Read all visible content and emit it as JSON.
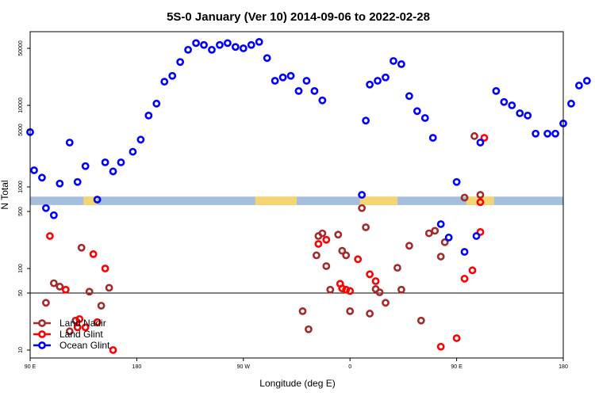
{
  "chart_data": {
    "type": "scatter",
    "title": "5S-0 January (Ver 10)   2014-09-06 to 2022-02-28",
    "xlabel": "Longitude (deg E)",
    "ylabel": "N Total",
    "y_scale": "log",
    "ylim": [
      8,
      80000
    ],
    "x_ticks": [
      "90 E",
      "180",
      "90 W",
      "0",
      "90 E",
      "180"
    ],
    "y_ticks": [
      "10",
      "50",
      "100",
      "500",
      "1000",
      "5000",
      "10000",
      "50000"
    ],
    "reference_line_y": 50,
    "land_band": {
      "y_range": [
        600,
        760
      ],
      "ocean_color": "#a4bedc",
      "land_color": "#f5d572"
    },
    "legend": {
      "position": "bottom-left"
    },
    "series": [
      {
        "name": "Land Nadir",
        "color": "#a52a2a",
        "x": [
          8,
          12,
          15,
          20,
          23,
          26,
          30,
          36,
          40,
          138,
          141,
          145,
          146,
          148,
          150,
          152,
          156,
          158,
          160,
          162,
          168,
          170,
          172,
          175,
          177,
          180,
          186,
          188,
          192,
          198,
          202,
          205,
          208,
          210,
          220,
          225,
          228
        ],
        "y": [
          38,
          66,
          60,
          17,
          23,
          180,
          52,
          35,
          58,
          30,
          18,
          145,
          250,
          270,
          107,
          55,
          260,
          165,
          145,
          30,
          550,
          320,
          28,
          56,
          51,
          38,
          102,
          55,
          190,
          23,
          270,
          290,
          140,
          210,
          740,
          4200,
          800
        ]
      },
      {
        "name": "Land Glint",
        "color": "#ff0000",
        "x": [
          10,
          18,
          24,
          25,
          28,
          32,
          34,
          38,
          42,
          146,
          150,
          157,
          158,
          160,
          162,
          166,
          172,
          175,
          208,
          216,
          220,
          224,
          228,
          228,
          230
        ],
        "y": [
          250,
          55,
          19,
          24,
          19,
          150,
          22,
          100,
          10,
          200,
          225,
          65,
          57,
          55,
          53,
          130,
          85,
          70,
          11,
          14,
          75,
          95,
          280,
          650,
          4000
        ]
      },
      {
        "name": "Ocean Glint",
        "color": "#0000ff",
        "x": [
          0,
          2,
          6,
          8,
          12,
          15,
          20,
          24,
          28,
          34,
          38,
          42,
          46,
          52,
          56,
          60,
          64,
          68,
          72,
          76,
          80,
          84,
          88,
          92,
          96,
          100,
          104,
          108,
          112,
          116,
          120,
          124,
          128,
          132,
          136,
          140,
          144,
          148,
          168,
          170,
          172,
          176,
          180,
          184,
          188,
          192,
          196,
          200,
          204,
          208,
          212,
          216,
          220,
          226,
          228,
          236,
          240,
          244,
          248,
          252,
          256,
          262,
          266,
          270,
          274,
          278,
          282
        ],
        "y": [
          4700,
          1600,
          1300,
          550,
          450,
          1100,
          3500,
          1150,
          1800,
          700,
          2000,
          1550,
          2000,
          2700,
          3800,
          7500,
          10500,
          19500,
          23000,
          34000,
          48000,
          58000,
          55000,
          48000,
          55000,
          58000,
          52000,
          50000,
          55000,
          60000,
          38000,
          20000,
          22000,
          23000,
          15000,
          20000,
          15000,
          11500,
          800,
          6500,
          18000,
          20000,
          22000,
          35000,
          32000,
          13000,
          8500,
          7000,
          4000,
          350,
          240,
          1150,
          160,
          250,
          3500,
          15000,
          11000,
          10000,
          8000,
          7500,
          4500,
          4500,
          4500,
          6000,
          10500,
          17500,
          20000
        ]
      }
    ]
  }
}
